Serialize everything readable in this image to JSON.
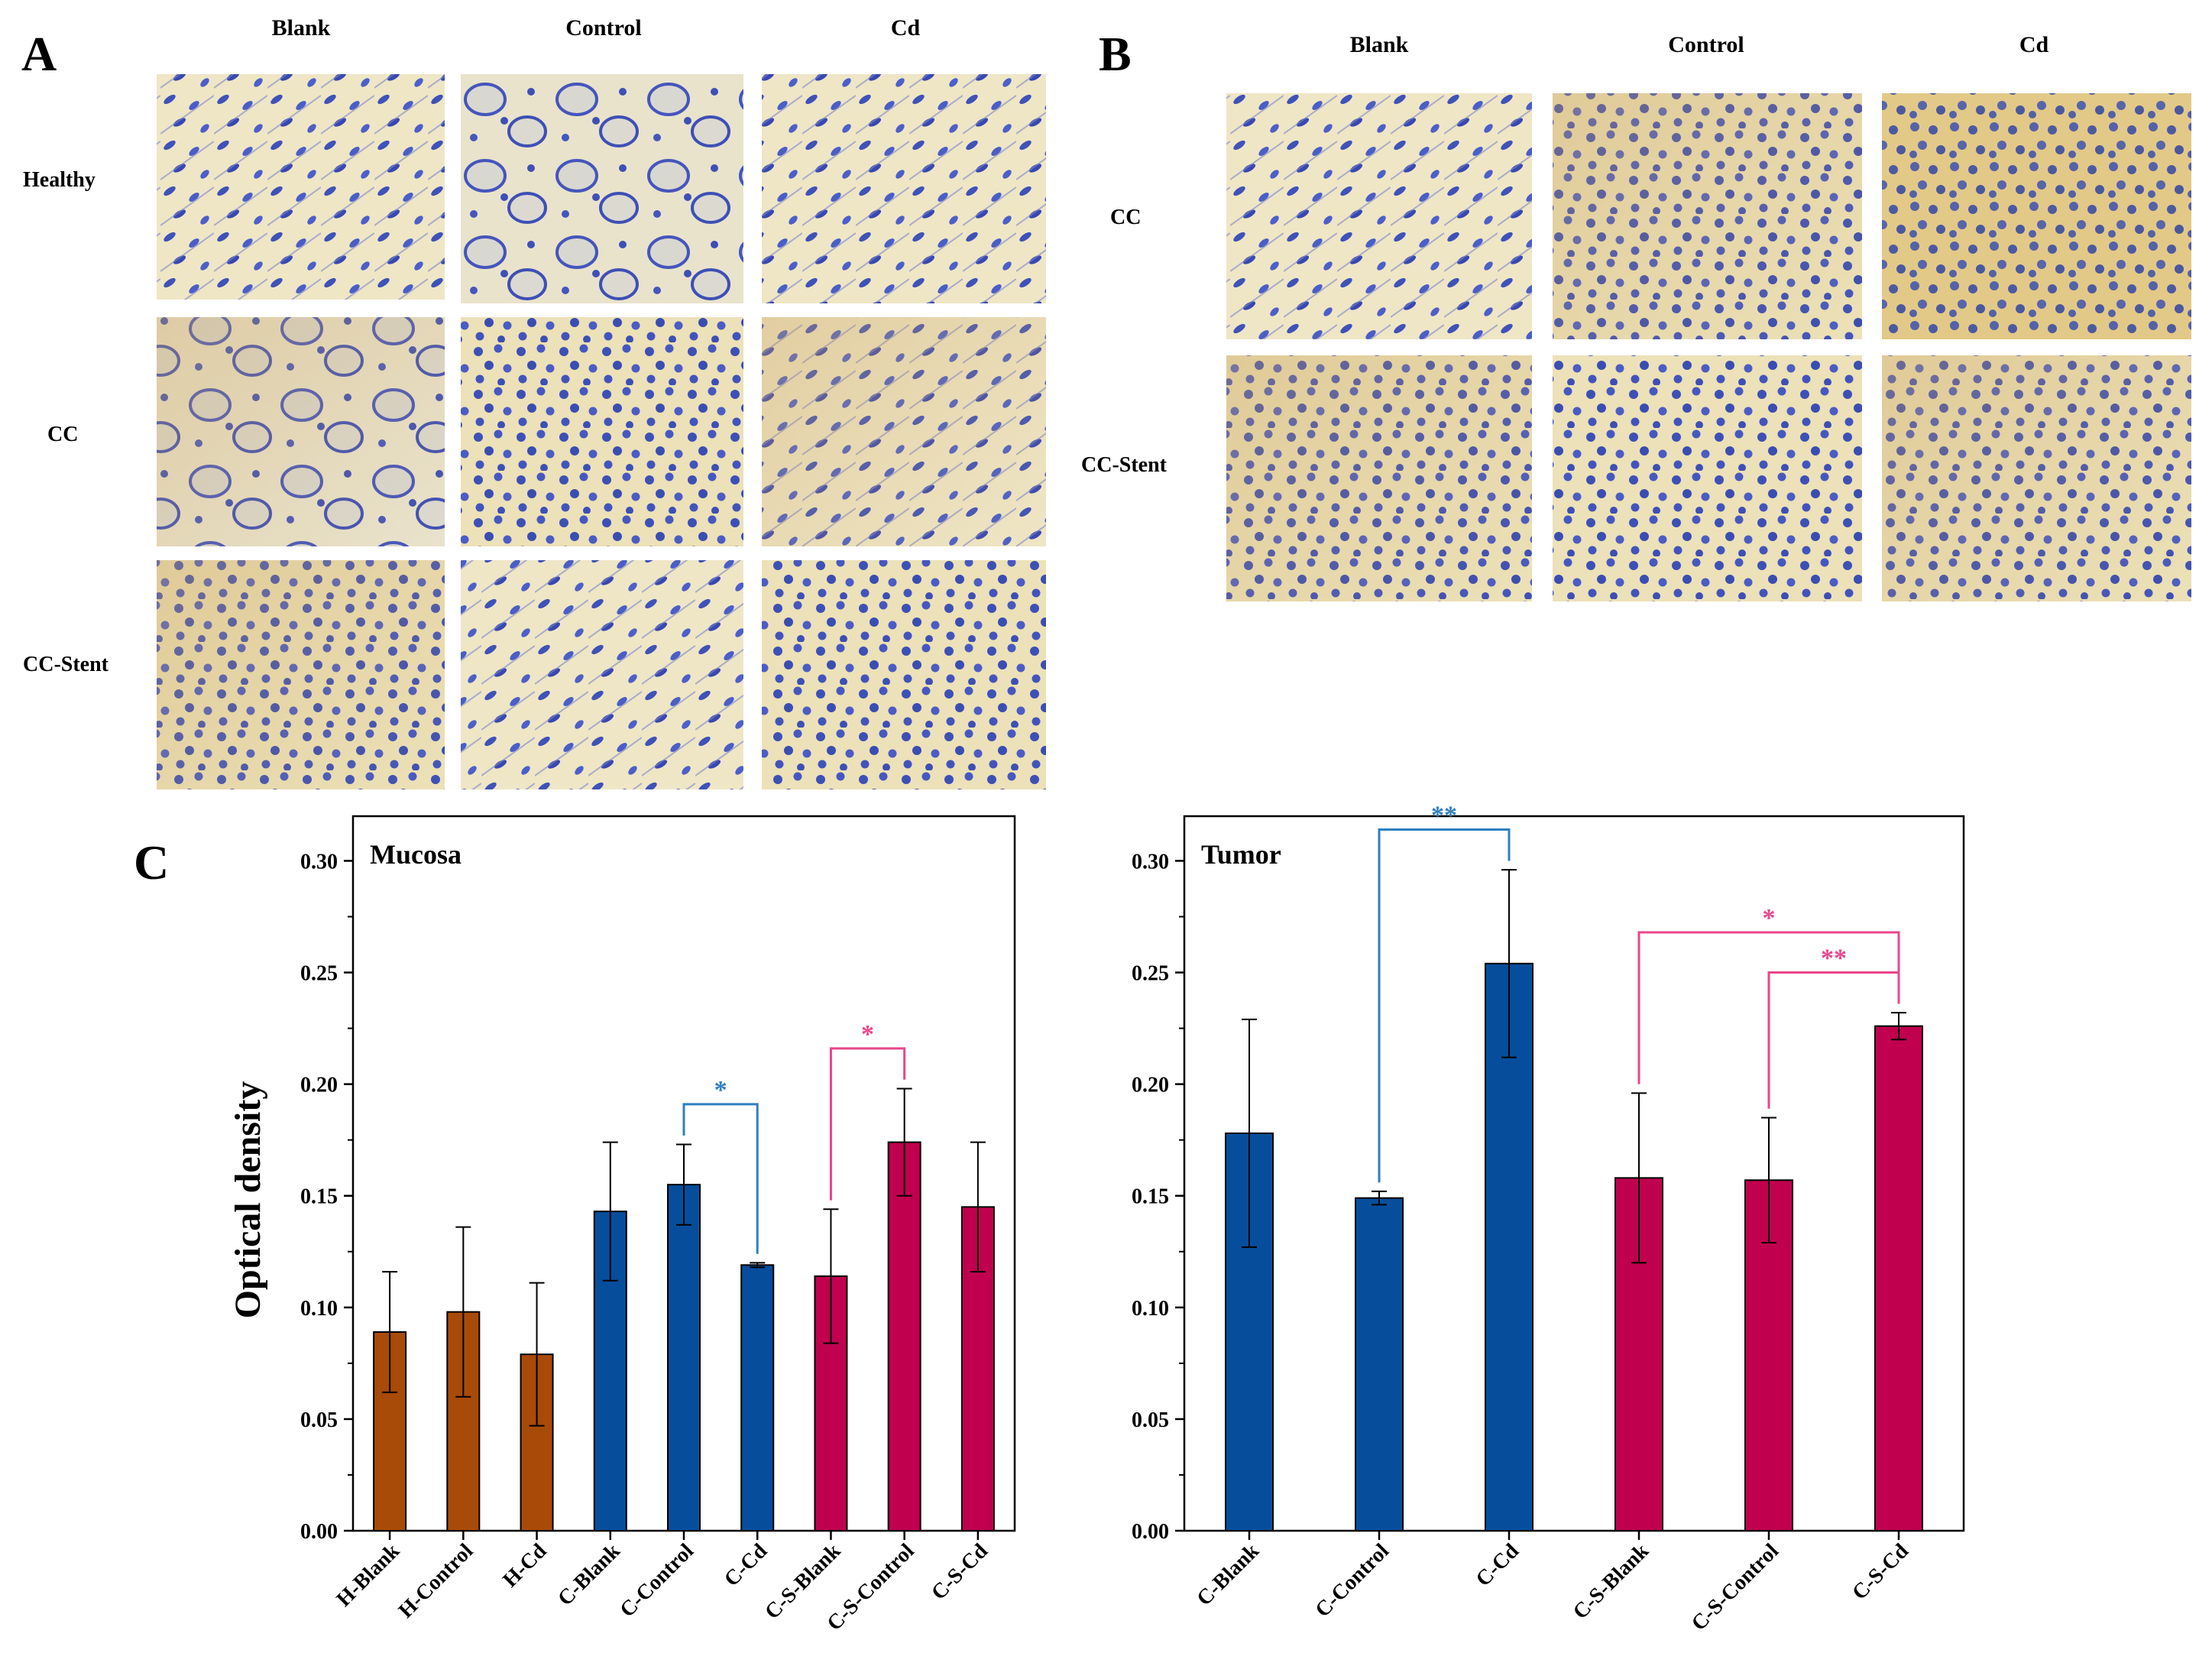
{
  "panel_a": {
    "label": "A",
    "columns": [
      "Blank",
      "Control",
      "Cd"
    ],
    "rows": [
      "Healthy",
      "CC",
      "CC-Stent"
    ]
  },
  "panel_b": {
    "label": "B",
    "columns": [
      "Blank",
      "Control",
      "Cd"
    ],
    "rows": [
      "CC",
      "CC-Stent"
    ]
  },
  "panel_c": {
    "label": "C"
  },
  "colors": {
    "healthy": "#a84a08",
    "cc": "#064e9c",
    "cc_stent": "#c0004e",
    "sig_blue": "#2e7fc0",
    "sig_pink": "#e8468c"
  },
  "chart_data": [
    {
      "type": "bar",
      "title": "Mucosa",
      "ylabel": "Optical density",
      "ylim": [
        0,
        0.32
      ],
      "yticks": [
        "0.00",
        "0.05",
        "0.10",
        "0.15",
        "0.20",
        "0.25",
        "0.30"
      ],
      "categories": [
        "H-Blank",
        "H-Control",
        "H-Cd",
        "C-Blank",
        "C-Control",
        "C-Cd",
        "C-S-Blank",
        "C-S-Control",
        "C-S-Cd"
      ],
      "values": [
        0.089,
        0.098,
        0.079,
        0.143,
        0.155,
        0.119,
        0.114,
        0.174,
        0.145
      ],
      "errors": [
        0.027,
        0.038,
        0.032,
        0.031,
        0.018,
        0.001,
        0.03,
        0.024,
        0.029
      ],
      "groups": [
        "healthy",
        "healthy",
        "healthy",
        "cc",
        "cc",
        "cc",
        "cc_stent",
        "cc_stent",
        "cc_stent"
      ],
      "significance": [
        {
          "from": 4,
          "to": 5,
          "label": "*",
          "color": "sig_blue"
        },
        {
          "from": 6,
          "to": 7,
          "label": "*",
          "color": "sig_pink"
        }
      ]
    },
    {
      "type": "bar",
      "title": "Tumor",
      "ylim": [
        0,
        0.32
      ],
      "yticks": [
        "0.00",
        "0.05",
        "0.10",
        "0.15",
        "0.20",
        "0.25",
        "0.30"
      ],
      "categories": [
        "C-Blank",
        "C-Control",
        "C-Cd",
        "C-S-Blank",
        "C-S-Control",
        "C-S-Cd"
      ],
      "values": [
        0.178,
        0.149,
        0.254,
        0.158,
        0.157,
        0.226
      ],
      "errors": [
        0.051,
        0.003,
        0.042,
        0.038,
        0.028,
        0.006
      ],
      "groups": [
        "cc",
        "cc",
        "cc",
        "cc_stent",
        "cc_stent",
        "cc_stent"
      ],
      "significance": [
        {
          "from": 1,
          "to": 2,
          "label": "**",
          "color": "sig_blue"
        },
        {
          "from": 3,
          "to": 5,
          "label": "*",
          "color": "sig_pink"
        },
        {
          "from": 4,
          "to": 5,
          "label": "**",
          "color": "sig_pink"
        }
      ]
    }
  ]
}
